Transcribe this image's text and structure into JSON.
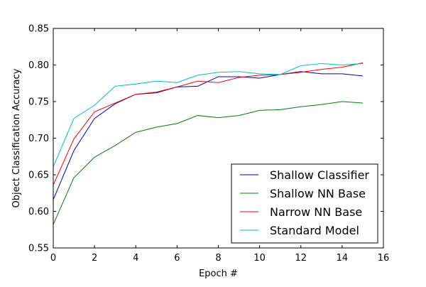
{
  "chart_data": {
    "type": "line",
    "title": "",
    "xlabel": "Epoch #",
    "ylabel": "Object Classification Accuracy",
    "xlim": [
      0,
      16
    ],
    "ylim": [
      0.55,
      0.85
    ],
    "xticks": [
      0,
      2,
      4,
      6,
      8,
      10,
      12,
      14,
      16
    ],
    "xtick_labels": [
      "0",
      "2",
      "4",
      "6",
      "8",
      "10",
      "12",
      "14",
      "16"
    ],
    "yticks": [
      0.55,
      0.6,
      0.65,
      0.7,
      0.75,
      0.8,
      0.85
    ],
    "ytick_labels": [
      "0.55",
      "0.60",
      "0.65",
      "0.70",
      "0.75",
      "0.80",
      "0.85"
    ],
    "grid": false,
    "legend_position": "lower-right",
    "x": [
      0,
      1,
      2,
      3,
      4,
      5,
      6,
      7,
      8,
      9,
      10,
      11,
      12,
      13,
      14,
      15
    ],
    "series": [
      {
        "name": "Shallow Classifier",
        "color": "#0000bf",
        "values": [
          0.616,
          0.683,
          0.727,
          0.747,
          0.76,
          0.762,
          0.77,
          0.771,
          0.784,
          0.784,
          0.782,
          0.787,
          0.791,
          0.788,
          0.788,
          0.785
        ]
      },
      {
        "name": "Shallow NN Base",
        "color": "#008000",
        "values": [
          0.582,
          0.646,
          0.674,
          0.69,
          0.708,
          0.715,
          0.72,
          0.731,
          0.728,
          0.731,
          0.738,
          0.739,
          0.743,
          0.746,
          0.75,
          0.748
        ]
      },
      {
        "name": "Narrow NN Base",
        "color": "#ff0000",
        "values": [
          0.636,
          0.699,
          0.736,
          0.748,
          0.76,
          0.763,
          0.77,
          0.778,
          0.776,
          0.783,
          0.786,
          0.787,
          0.79,
          0.794,
          0.797,
          0.803
        ]
      },
      {
        "name": "Standard Model",
        "color": "#00bfbf",
        "values": [
          0.661,
          0.727,
          0.745,
          0.771,
          0.774,
          0.778,
          0.776,
          0.786,
          0.79,
          0.791,
          0.788,
          0.787,
          0.799,
          0.802,
          0.8,
          0.802
        ]
      }
    ]
  }
}
